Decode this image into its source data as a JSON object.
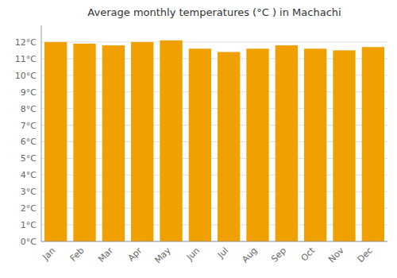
{
  "chart_data": {
    "type": "bar",
    "title": "Average monthly temperatures (°C ) in Machachi",
    "categories": [
      "Jan",
      "Feb",
      "Mar",
      "Apr",
      "May",
      "Jun",
      "Jul",
      "Aug",
      "Sep",
      "Oct",
      "Nov",
      "Dec"
    ],
    "values": [
      12.0,
      11.9,
      11.8,
      12.0,
      12.1,
      11.6,
      11.4,
      11.6,
      11.8,
      11.6,
      11.5,
      11.7
    ],
    "color": "#F0A000",
    "ylim": [
      0,
      13
    ],
    "yticks": [
      {
        "value": 0,
        "label": "0°C"
      },
      {
        "value": 1,
        "label": "1°C"
      },
      {
        "value": 2,
        "label": "2°C"
      },
      {
        "value": 3,
        "label": "3°C"
      },
      {
        "value": 4,
        "label": "4°C"
      },
      {
        "value": 5,
        "label": "5°C"
      },
      {
        "value": 6,
        "label": "6°C"
      },
      {
        "value": 7,
        "label": "7°C"
      },
      {
        "value": 8,
        "label": "8°C"
      },
      {
        "value": 9,
        "label": "9°C"
      },
      {
        "value": 10,
        "label": "10°C"
      },
      {
        "value": 11,
        "label": "11°C"
      },
      {
        "value": 12,
        "label": "12°C"
      }
    ],
    "grid": true
  }
}
